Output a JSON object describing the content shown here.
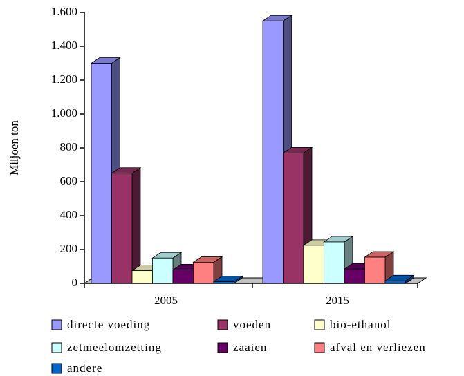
{
  "chart_data": {
    "type": "bar3d",
    "y_label": "Miljoen ton",
    "categories": [
      "2005",
      "2015"
    ],
    "series": [
      {
        "name": "directe voeding",
        "color": "#9999ff",
        "values": [
          1300,
          1550
        ]
      },
      {
        "name": "voeden",
        "color": "#993366",
        "values": [
          650,
          770
        ]
      },
      {
        "name": "bio-ethanol",
        "color": "#ffffcc",
        "values": [
          75,
          225
        ]
      },
      {
        "name": "zetmeelomzetting",
        "color": "#ccffff",
        "values": [
          150,
          245
        ]
      },
      {
        "name": "zaaien",
        "color": "#660066",
        "values": [
          80,
          85
        ]
      },
      {
        "name": "afval en verliezen",
        "color": "#ff8080",
        "values": [
          125,
          155
        ]
      },
      {
        "name": "andere",
        "color": "#0066cc",
        "values": [
          10,
          15
        ]
      }
    ],
    "ylim": [
      0,
      1600
    ],
    "yticks": [
      0,
      200,
      400,
      600,
      800,
      {
        "value": 1000,
        "label": "1.000"
      },
      {
        "value": 1200,
        "label": "1.200"
      },
      {
        "value": 1400,
        "label": "1.400"
      },
      {
        "value": 1600,
        "label": "1.600"
      }
    ]
  }
}
